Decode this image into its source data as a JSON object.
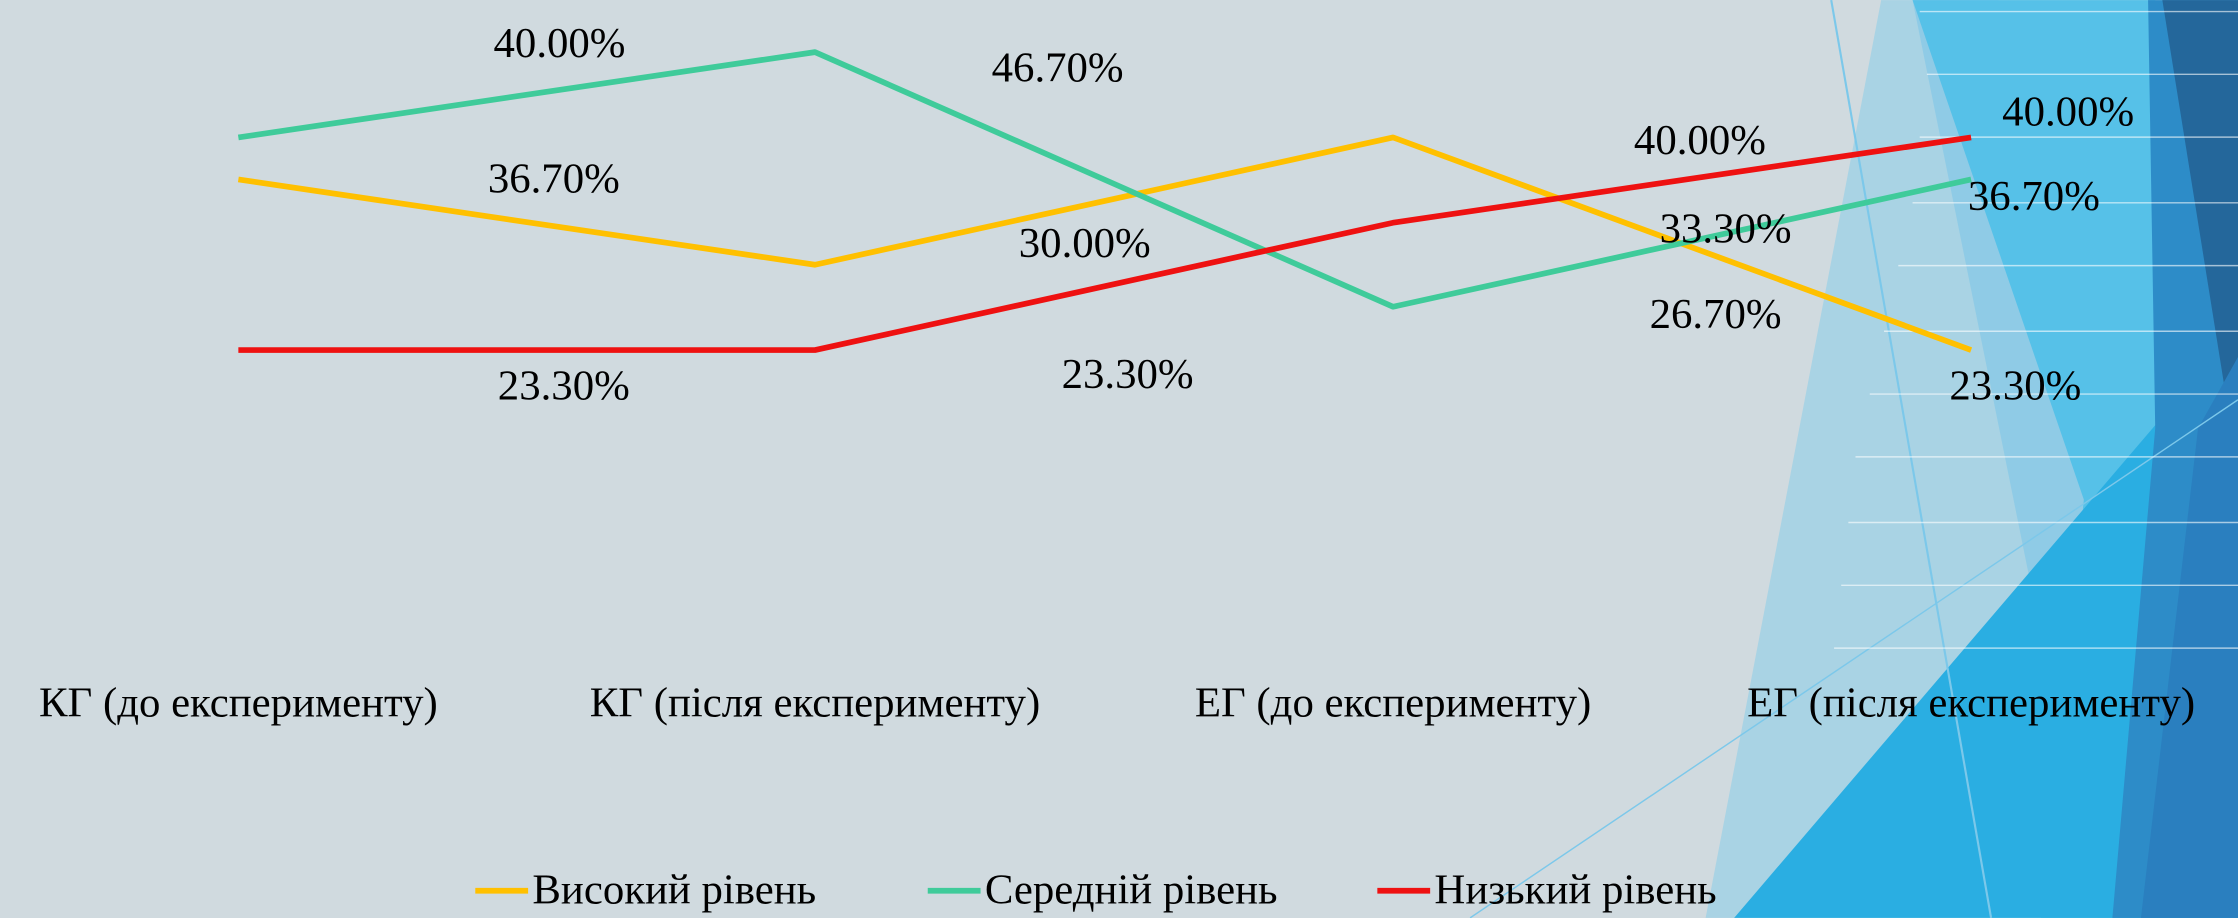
{
  "chart_data": {
    "type": "line",
    "categories": [
      "КГ (до експерименту)",
      "КГ (після експерименту)",
      "ЕГ (до експерименту)",
      "ЕГ (після експерименту)"
    ],
    "series": [
      {
        "name": "Високий рівень",
        "color": "#ffc000",
        "values": [
          36.7,
          30.0,
          40.0,
          23.3
        ],
        "value_labels": [
          "36.70%",
          "30.00%",
          "40.00%",
          "23.30%"
        ]
      },
      {
        "name": "Середній рівень",
        "color": "#3fcb9a",
        "values": [
          40.0,
          46.7,
          26.7,
          36.7
        ],
        "value_labels": [
          "40.00%",
          "46.70%",
          "26.70%",
          "36.70%"
        ]
      },
      {
        "name": "Низький рівень",
        "color": "#ee1111",
        "values": [
          23.3,
          23.3,
          33.3,
          40.0
        ],
        "value_labels": [
          "23.30%",
          "23.30%",
          "33.30%",
          "40.00%"
        ]
      }
    ],
    "ylim": [
      0,
      50
    ],
    "legend": "bottom"
  }
}
